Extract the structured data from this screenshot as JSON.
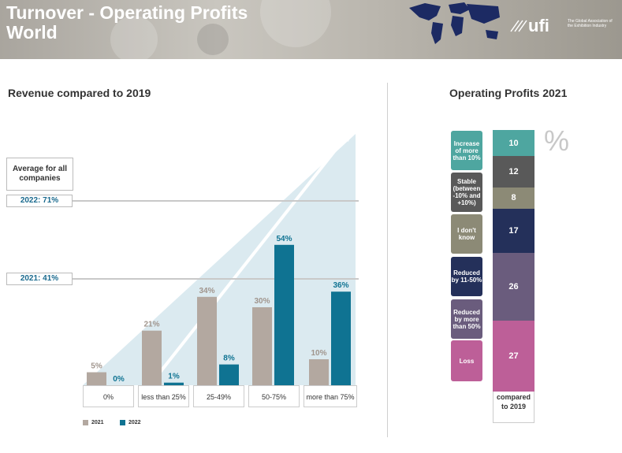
{
  "header": {
    "title_line1": "Turnover - Operating Profits",
    "title_line2": "World",
    "logo": "ufi",
    "logo_tagline": "The Global Association of the Exhibition Industry"
  },
  "colors": {
    "c2021": "#b3a8a0",
    "c2022": "#0f7392",
    "arrow_fill": "#dbeaf0"
  },
  "chart_data": [
    {
      "type": "bar",
      "title": "Revenue compared to 2019",
      "categories": [
        "0%",
        "less than 25%",
        "25-49%",
        "50-75%",
        "more than 75%"
      ],
      "series": [
        {
          "name": "2021",
          "values": [
            5,
            21,
            34,
            30,
            10
          ]
        },
        {
          "name": "2022",
          "values": [
            0,
            1,
            8,
            54,
            36
          ]
        }
      ],
      "value_suffix": "%",
      "average_label": "Average for all companies",
      "reference_lines": [
        {
          "label": "2022: 71%",
          "value": 71
        },
        {
          "label": "2021: 41%",
          "value": 41
        }
      ],
      "ylim": [
        0,
        60
      ]
    },
    {
      "type": "bar",
      "title": "Operating Profits 2021",
      "unit_symbol": "%",
      "categories": [
        "compared to 2019"
      ],
      "segments": [
        {
          "label": "Increase of more than 10%",
          "value": 10,
          "color": "#4ea6a0"
        },
        {
          "label": "Stable (between -10% and +10%)",
          "value": 12,
          "color": "#595959"
        },
        {
          "label": "I don't know",
          "value": 8,
          "color": "#8c8a76"
        },
        {
          "label": "Reduced by 11-50%",
          "value": 17,
          "color": "#24305a"
        },
        {
          "label": "Reduced by more than 50%",
          "value": 26,
          "color": "#6a5c7d"
        },
        {
          "label": "Loss",
          "value": 27,
          "color": "#bd5f98"
        }
      ]
    }
  ]
}
